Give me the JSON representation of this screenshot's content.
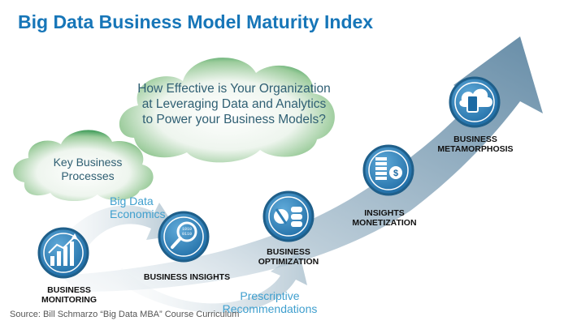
{
  "title": "Big Data Business Model Maturity Index",
  "cloud_question": "How Effective is Your Organization at Leveraging Data and Analytics to Power your Business Models?",
  "cloud_processes": "Key Business Processes",
  "arrow_labels": {
    "big_data_economics": "Big Data Economics",
    "prescriptive": "Prescriptive Recommendations"
  },
  "stages": {
    "monitoring": "BUSINESS MONITORING",
    "insights": "BUSINESS INSIGHTS",
    "optimization": "BUSINESS OPTIMIZATION",
    "monetization": "INSIGHTS MONETIZATION",
    "metamorphosis": "BUSINESS METAMORPHOSIS"
  },
  "source": "Source: Bill Schmarzo “Big Data MBA” Course Curriculum",
  "colors": {
    "title": "#1776b8",
    "arrow": "#6b8fa8",
    "icon_circle": "#2f7fb6",
    "icon_ring": "#1f5f8a",
    "cloud_green": "#3c9a57",
    "arrow_text": "#3f9fce"
  },
  "icons": [
    "bar-chart-icon",
    "magnifier-icon",
    "process-flow-icon",
    "coin-stack-icon",
    "cloud-tablet-icon"
  ]
}
